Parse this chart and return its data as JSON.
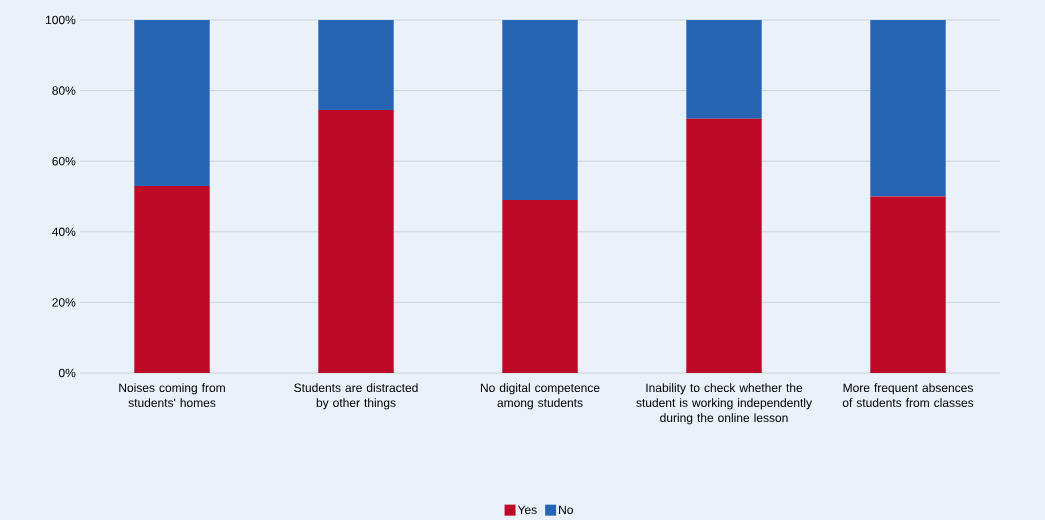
{
  "chart_data": {
    "type": "bar",
    "stacked": true,
    "categories": [
      "Noises coming from students' homes",
      "Students are distracted by other things",
      "No digital competence among students",
      "Inability to check whether the student is working independently during the online lesson",
      "More frequent absences of students from classes"
    ],
    "series": [
      {
        "name": "Yes",
        "color": "#be0a26",
        "values": [
          53,
          74.5,
          49,
          72,
          50
        ]
      },
      {
        "name": "No",
        "color": "#2864b4",
        "values": [
          47,
          25.5,
          51,
          28,
          50
        ]
      }
    ],
    "ylim": [
      0,
      100
    ],
    "yticks": [
      {
        "value": 0,
        "label": "0%"
      },
      {
        "value": 20,
        "label": "20%"
      },
      {
        "value": 40,
        "label": "40%"
      },
      {
        "value": 60,
        "label": "60%"
      },
      {
        "value": 80,
        "label": "80%"
      },
      {
        "value": 100,
        "label": "100%"
      }
    ],
    "grid": "y",
    "legend": "bottom"
  }
}
